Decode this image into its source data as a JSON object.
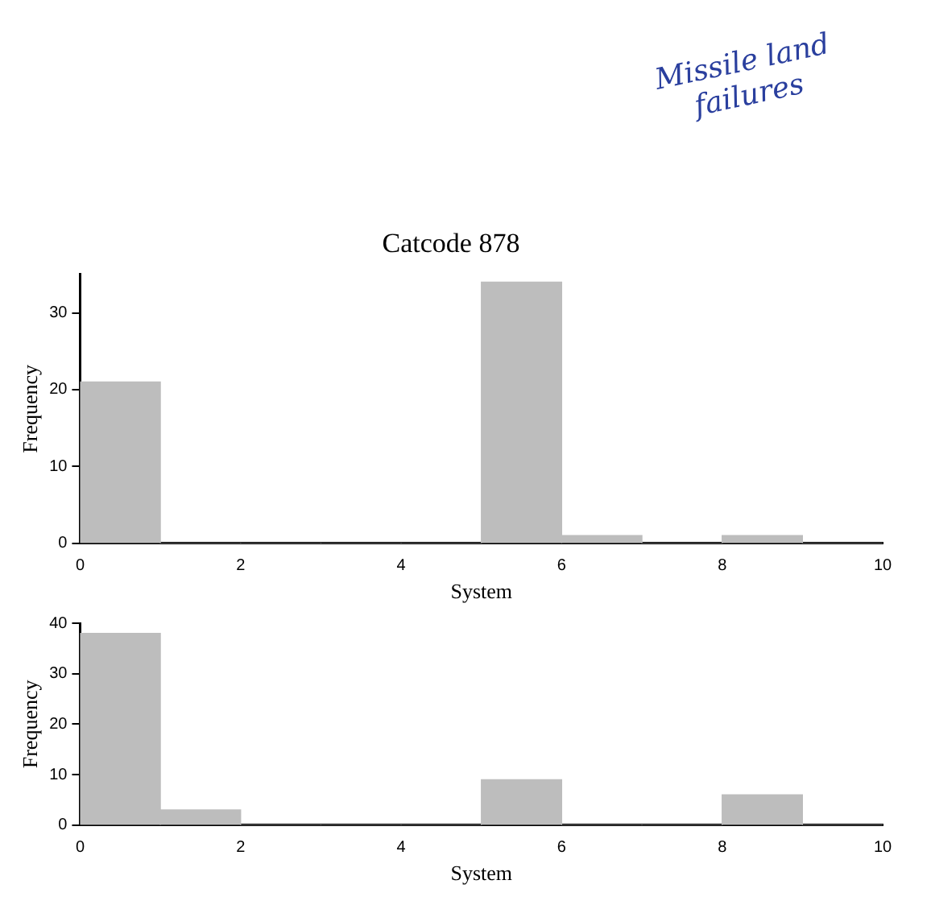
{
  "chart_data": [
    {
      "type": "histogram",
      "title": "Catcode 878",
      "xlabel": "System",
      "ylabel": "Frequency",
      "bins": [
        0,
        1,
        2,
        3,
        4,
        5,
        6,
        7,
        8,
        9,
        10
      ],
      "values": [
        21,
        0,
        0,
        0,
        0,
        34,
        1,
        0,
        1,
        0
      ],
      "color": "#bdbdbd",
      "xlim": [
        0,
        10
      ],
      "xticks": [
        0,
        2,
        4,
        6,
        8,
        10
      ],
      "ylim": [
        0,
        35
      ],
      "yticks": [
        0,
        10,
        20,
        30
      ],
      "grid": false,
      "legend": false,
      "annotations": [
        "Missile land failures"
      ]
    },
    {
      "type": "histogram",
      "xlabel": "System",
      "ylabel": "Frequency",
      "bins": [
        0,
        1,
        2,
        3,
        4,
        5,
        6,
        7,
        8,
        9,
        10
      ],
      "values": [
        38,
        3,
        0,
        0,
        0,
        9,
        0,
        0,
        6,
        0
      ],
      "color": "#bdbdbd",
      "xlim": [
        0,
        10
      ],
      "xticks": [
        0,
        2,
        4,
        6,
        8,
        10
      ],
      "ylim": [
        0,
        40
      ],
      "yticks": [
        0,
        10,
        20,
        30,
        40
      ],
      "grid": false,
      "legend": false
    }
  ]
}
